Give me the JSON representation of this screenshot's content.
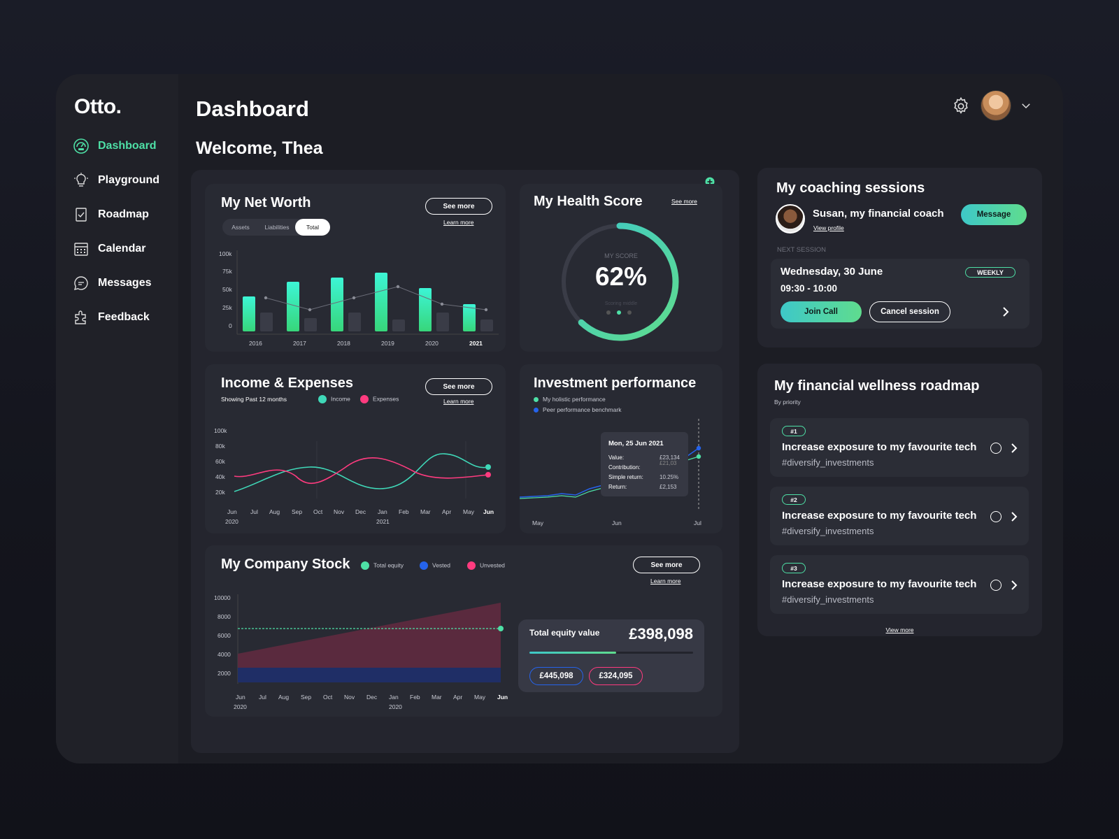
{
  "app": {
    "logo": "Otto."
  },
  "nav": [
    {
      "label": "Dashboard",
      "icon": "dashboard-icon"
    },
    {
      "label": "Playground",
      "icon": "lightbulb-icon"
    },
    {
      "label": "Roadmap",
      "icon": "checklist-icon"
    },
    {
      "label": "Calendar",
      "icon": "calendar-icon"
    },
    {
      "label": "Messages",
      "icon": "message-icon"
    },
    {
      "label": "Feedback",
      "icon": "puzzle-icon"
    }
  ],
  "header": {
    "title": "Dashboard",
    "welcome": "Welcome, Thea"
  },
  "net_worth": {
    "title": "My Net Worth",
    "see_more": "See more",
    "learn_more": "Learn more",
    "tabs": [
      "Assets",
      "Liabilities",
      "Total"
    ],
    "active_tab": "Total",
    "y_ticks": [
      "100k",
      "75k",
      "50k",
      "25k",
      "0"
    ],
    "x_ticks": [
      "2016",
      "2017",
      "2018",
      "2019",
      "2020",
      "2021"
    ]
  },
  "health": {
    "title": "My Health Score",
    "see_more": "See more",
    "label": "MY SCORE",
    "value": "62%",
    "sub": "Scoring middle",
    "score_fraction": 0.62
  },
  "income": {
    "title": "Income & Expenses",
    "subtitle": "Showing Past 12 months",
    "legend": [
      "Income",
      "Expenses"
    ],
    "see_more": "See more",
    "learn_more": "Learn more",
    "y_ticks": [
      "100k",
      "80k",
      "60k",
      "40k",
      "20k"
    ],
    "x_ticks": [
      "Jun",
      "Jul",
      "Aug",
      "Sep",
      "Oct",
      "Nov",
      "Dec",
      "Jan",
      "Feb",
      "Mar",
      "Apr",
      "May",
      "Jun"
    ],
    "x_sub": [
      "2020",
      "2021"
    ]
  },
  "investment": {
    "title": "Investment performance",
    "legend": [
      "My holistic performance",
      "Peer performance benchmark"
    ],
    "x_ticks": [
      "May",
      "Jun",
      "Jul"
    ],
    "tooltip": {
      "date": "Mon, 25 Jun 2021",
      "rows": [
        {
          "k": "Value:",
          "v": "£23,134"
        },
        {
          "k": "Contribution:",
          "v": "£21,03"
        },
        {
          "k": "Simple return:",
          "v": "10.25%"
        },
        {
          "k": "Return:",
          "v": "£2,153"
        }
      ]
    }
  },
  "stock": {
    "title": "My Company Stock",
    "legend": [
      "Total equity",
      "Vested",
      "Unvested"
    ],
    "see_more": "See more",
    "learn_more": "Learn more",
    "y_ticks": [
      "10000",
      "8000",
      "6000",
      "4000",
      "2000"
    ],
    "x_ticks": [
      "Jun",
      "Jul",
      "Aug",
      "Sep",
      "Oct",
      "Nov",
      "Dec",
      "Jan",
      "Feb",
      "Mar",
      "Apr",
      "May",
      "Jun"
    ],
    "x_sub": [
      "2020",
      "2020"
    ],
    "equity_label": "Total equity value",
    "equity_value": "£398,098",
    "vested_value": "£445,098",
    "unvested_value": "£324,095"
  },
  "coaching": {
    "title": "My coaching sessions",
    "coach": "Susan, my financial coach",
    "view_profile": "View profile",
    "message": "Message",
    "next_label": "NEXT SESSION",
    "date": "Wednesday, 30 June",
    "time": "09:30 - 10:00",
    "badge": "WEEKLY",
    "join": "Join Call",
    "cancel": "Cancel session"
  },
  "roadmap": {
    "title": "My financial wellness roadmap",
    "sub": "By priority",
    "items": [
      {
        "rank": "#1",
        "title": "Increase exposure to my favourite tech",
        "tag": "#diversify_investments"
      },
      {
        "rank": "#2",
        "title": "Increase exposure to my favourite tech",
        "tag": "#diversify_investments"
      },
      {
        "rank": "#3",
        "title": "Increase exposure to my favourite tech",
        "tag": "#diversify_investments"
      }
    ],
    "view_more": "View more"
  },
  "colors": {
    "accent": "#4ee0a6",
    "income": "#3fd8b8",
    "expenses": "#ff3b7f",
    "vested": "#2563eb",
    "unvested": "#ff3b7f"
  }
}
